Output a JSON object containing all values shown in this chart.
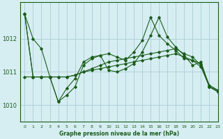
{
  "bg_color": "#d6eef2",
  "grid_color": "#b0d0d8",
  "line_color": "#1a5c1a",
  "title": "Graphe pression niveau de la mer (hPa)",
  "xlim": [
    -0.5,
    23
  ],
  "ylim": [
    1009.5,
    1013.1
  ],
  "yticks": [
    1010,
    1011,
    1012
  ],
  "xticks": [
    0,
    1,
    2,
    3,
    4,
    5,
    6,
    7,
    8,
    9,
    10,
    11,
    12,
    13,
    14,
    15,
    16,
    17,
    18,
    19,
    20,
    21,
    22,
    23
  ],
  "series": [
    [
      1012.75,
      1012.0,
      1011.7,
      1010.85,
      1010.1,
      1010.5,
      1010.8,
      1011.3,
      1011.45,
      1011.5,
      1011.55,
      1011.45,
      1011.35,
      1011.6,
      1011.95,
      1012.65,
      1012.1,
      1011.85,
      1011.65,
      1011.4,
      1011.35,
      1011.25,
      1010.55,
      1010.45
    ],
    [
      1012.75,
      1010.85,
      1010.85,
      1010.85,
      1010.1,
      1010.3,
      1010.55,
      1011.2,
      1011.4,
      1011.5,
      1011.05,
      1011.0,
      1011.1,
      1011.25,
      1011.6,
      1012.1,
      1012.65,
      1012.05,
      1011.75,
      1011.5,
      1011.2,
      1011.3,
      1010.55,
      1010.4
    ],
    [
      1012.75,
      1010.85,
      1010.85,
      1010.85,
      1010.85,
      1010.85,
      1010.9,
      1011.0,
      1011.1,
      1011.2,
      1011.3,
      1011.35,
      1011.4,
      1011.45,
      1011.5,
      1011.55,
      1011.6,
      1011.65,
      1011.7,
      1011.55,
      1011.45,
      1011.2,
      1010.6,
      1010.45
    ],
    [
      1010.85,
      1010.85,
      1010.85,
      1010.85,
      1010.85,
      1010.85,
      1010.9,
      1011.0,
      1011.05,
      1011.1,
      1011.15,
      1011.2,
      1011.25,
      1011.3,
      1011.35,
      1011.4,
      1011.45,
      1011.5,
      1011.55,
      1011.45,
      1011.35,
      1011.15,
      1010.55,
      1010.4
    ]
  ]
}
